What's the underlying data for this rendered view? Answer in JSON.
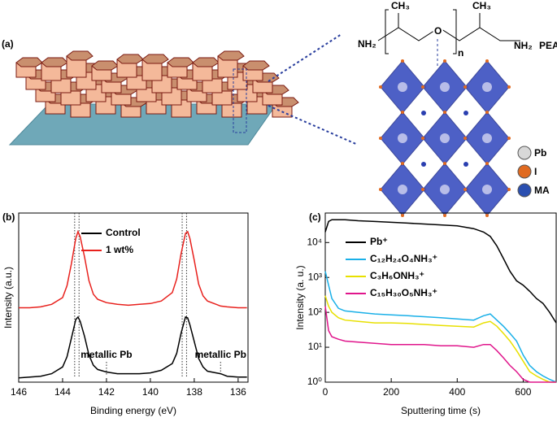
{
  "panel_a": {
    "label": "(a)",
    "molecule": {
      "amine_left": "NH₂",
      "methyl_left": "CH₃",
      "oxygen": "O",
      "repeat": "n",
      "methyl_right": "CH₃",
      "amine_right": "NH₂",
      "name": "PEA"
    },
    "legend": [
      "Pb",
      "I",
      "MA"
    ]
  },
  "chart_data": [
    {
      "type": "line",
      "panel_label": "(b)",
      "x_label": "Binding energy (eV)",
      "y_label": "Intensity (a.u.)",
      "x": [
        146,
        145.5,
        145,
        144.5,
        144,
        143.8,
        143.6,
        143.4,
        143.3,
        143.2,
        143,
        142.8,
        142.6,
        142.4,
        142,
        141.5,
        141,
        140.5,
        140,
        139.5,
        139,
        138.8,
        138.6,
        138.4,
        138.3,
        138.2,
        138,
        137.8,
        137.6,
        137.4,
        137,
        136.8,
        136.5,
        136,
        135.6
      ],
      "series": [
        {
          "name": "Control",
          "color": "#000000",
          "values": [
            0.25,
            0.3,
            0.35,
            0.5,
            0.9,
            1.5,
            2.6,
            3.7,
            3.85,
            3.6,
            2.7,
            1.6,
            1.0,
            0.75,
            0.6,
            0.5,
            0.5,
            0.5,
            0.55,
            0.7,
            1.1,
            1.7,
            2.9,
            3.85,
            3.8,
            3.4,
            2.4,
            1.4,
            0.9,
            0.65,
            0.55,
            0.5,
            0.35,
            0.3,
            0.3
          ]
        },
        {
          "name": "1 wt%",
          "color": "#e8211d",
          "values": [
            4.4,
            4.4,
            4.45,
            4.6,
            5.0,
            5.7,
            7.0,
            8.5,
            8.9,
            8.6,
            7.4,
            6.0,
            5.2,
            4.9,
            4.7,
            4.6,
            4.55,
            4.6,
            4.65,
            4.8,
            5.3,
            6.1,
            7.6,
            8.8,
            8.9,
            8.5,
            7.2,
            5.8,
            5.1,
            4.8,
            4.6,
            4.5,
            4.45,
            4.4,
            4.4
          ]
        }
      ],
      "xlim": [
        146,
        135.55
      ],
      "xticks": [
        146,
        144,
        142,
        140,
        138,
        136
      ],
      "ylim": [
        0,
        10
      ],
      "vlines": [
        143.45,
        143.25,
        138.55,
        138.35
      ],
      "annotations": [
        {
          "text": "metallic Pb",
          "x": 142
        },
        {
          "text": "metallic Pb",
          "x": 136.8
        }
      ]
    },
    {
      "type": "line",
      "panel_label": "(c)",
      "x_label": "Sputtering time (s)",
      "y_label": "Intensity (a. u.)",
      "log_y": true,
      "x": [
        0,
        10,
        20,
        40,
        60,
        100,
        150,
        200,
        250,
        300,
        350,
        400,
        450,
        480,
        500,
        520,
        540,
        560,
        580,
        600,
        620,
        640,
        660,
        680,
        700
      ],
      "series": [
        {
          "name": "Pb⁺",
          "color": "#000000",
          "values": [
            20000,
            40000,
            45000,
            45000,
            45000,
            42000,
            40000,
            38000,
            36000,
            34000,
            32000,
            30000,
            25000,
            20000,
            15000,
            8000,
            3500,
            1500,
            800,
            600,
            400,
            250,
            180,
            100,
            50
          ]
        },
        {
          "name": "C₁₂H₂₄O₄NH₃⁺",
          "color": "#1ab0e8",
          "values": [
            1500,
            600,
            250,
            130,
            110,
            100,
            90,
            85,
            80,
            75,
            70,
            65,
            60,
            80,
            90,
            60,
            40,
            25,
            15,
            6,
            3,
            2,
            1.5,
            1.2,
            1
          ]
        },
        {
          "name": "C₃H₆ONH₃⁺",
          "color": "#e8e000",
          "values": [
            300,
            150,
            100,
            70,
            60,
            55,
            50,
            50,
            48,
            45,
            42,
            40,
            38,
            50,
            55,
            40,
            25,
            15,
            8,
            4,
            2,
            1.5,
            1.2,
            1,
            1
          ]
        },
        {
          "name": "C₁₅H₃₀O₅NH₃⁺",
          "color": "#e0168c",
          "values": [
            150,
            30,
            20,
            17,
            15,
            14,
            13,
            12,
            12,
            12,
            11,
            11,
            10,
            12,
            12,
            8,
            5,
            3,
            2,
            1.2,
            1,
            1,
            1,
            1,
            1
          ]
        }
      ],
      "xlim": [
        0,
        700
      ],
      "xticks": [
        0,
        200,
        400,
        600
      ],
      "ylim": [
        1,
        70000
      ],
      "yticks": [
        {
          "value": 1,
          "label": "10⁰"
        },
        {
          "value": 10,
          "label": "10¹"
        },
        {
          "value": 100,
          "label": "10²"
        },
        {
          "value": 1000,
          "label": "10³"
        },
        {
          "value": 10000,
          "label": "10⁴"
        }
      ]
    }
  ]
}
